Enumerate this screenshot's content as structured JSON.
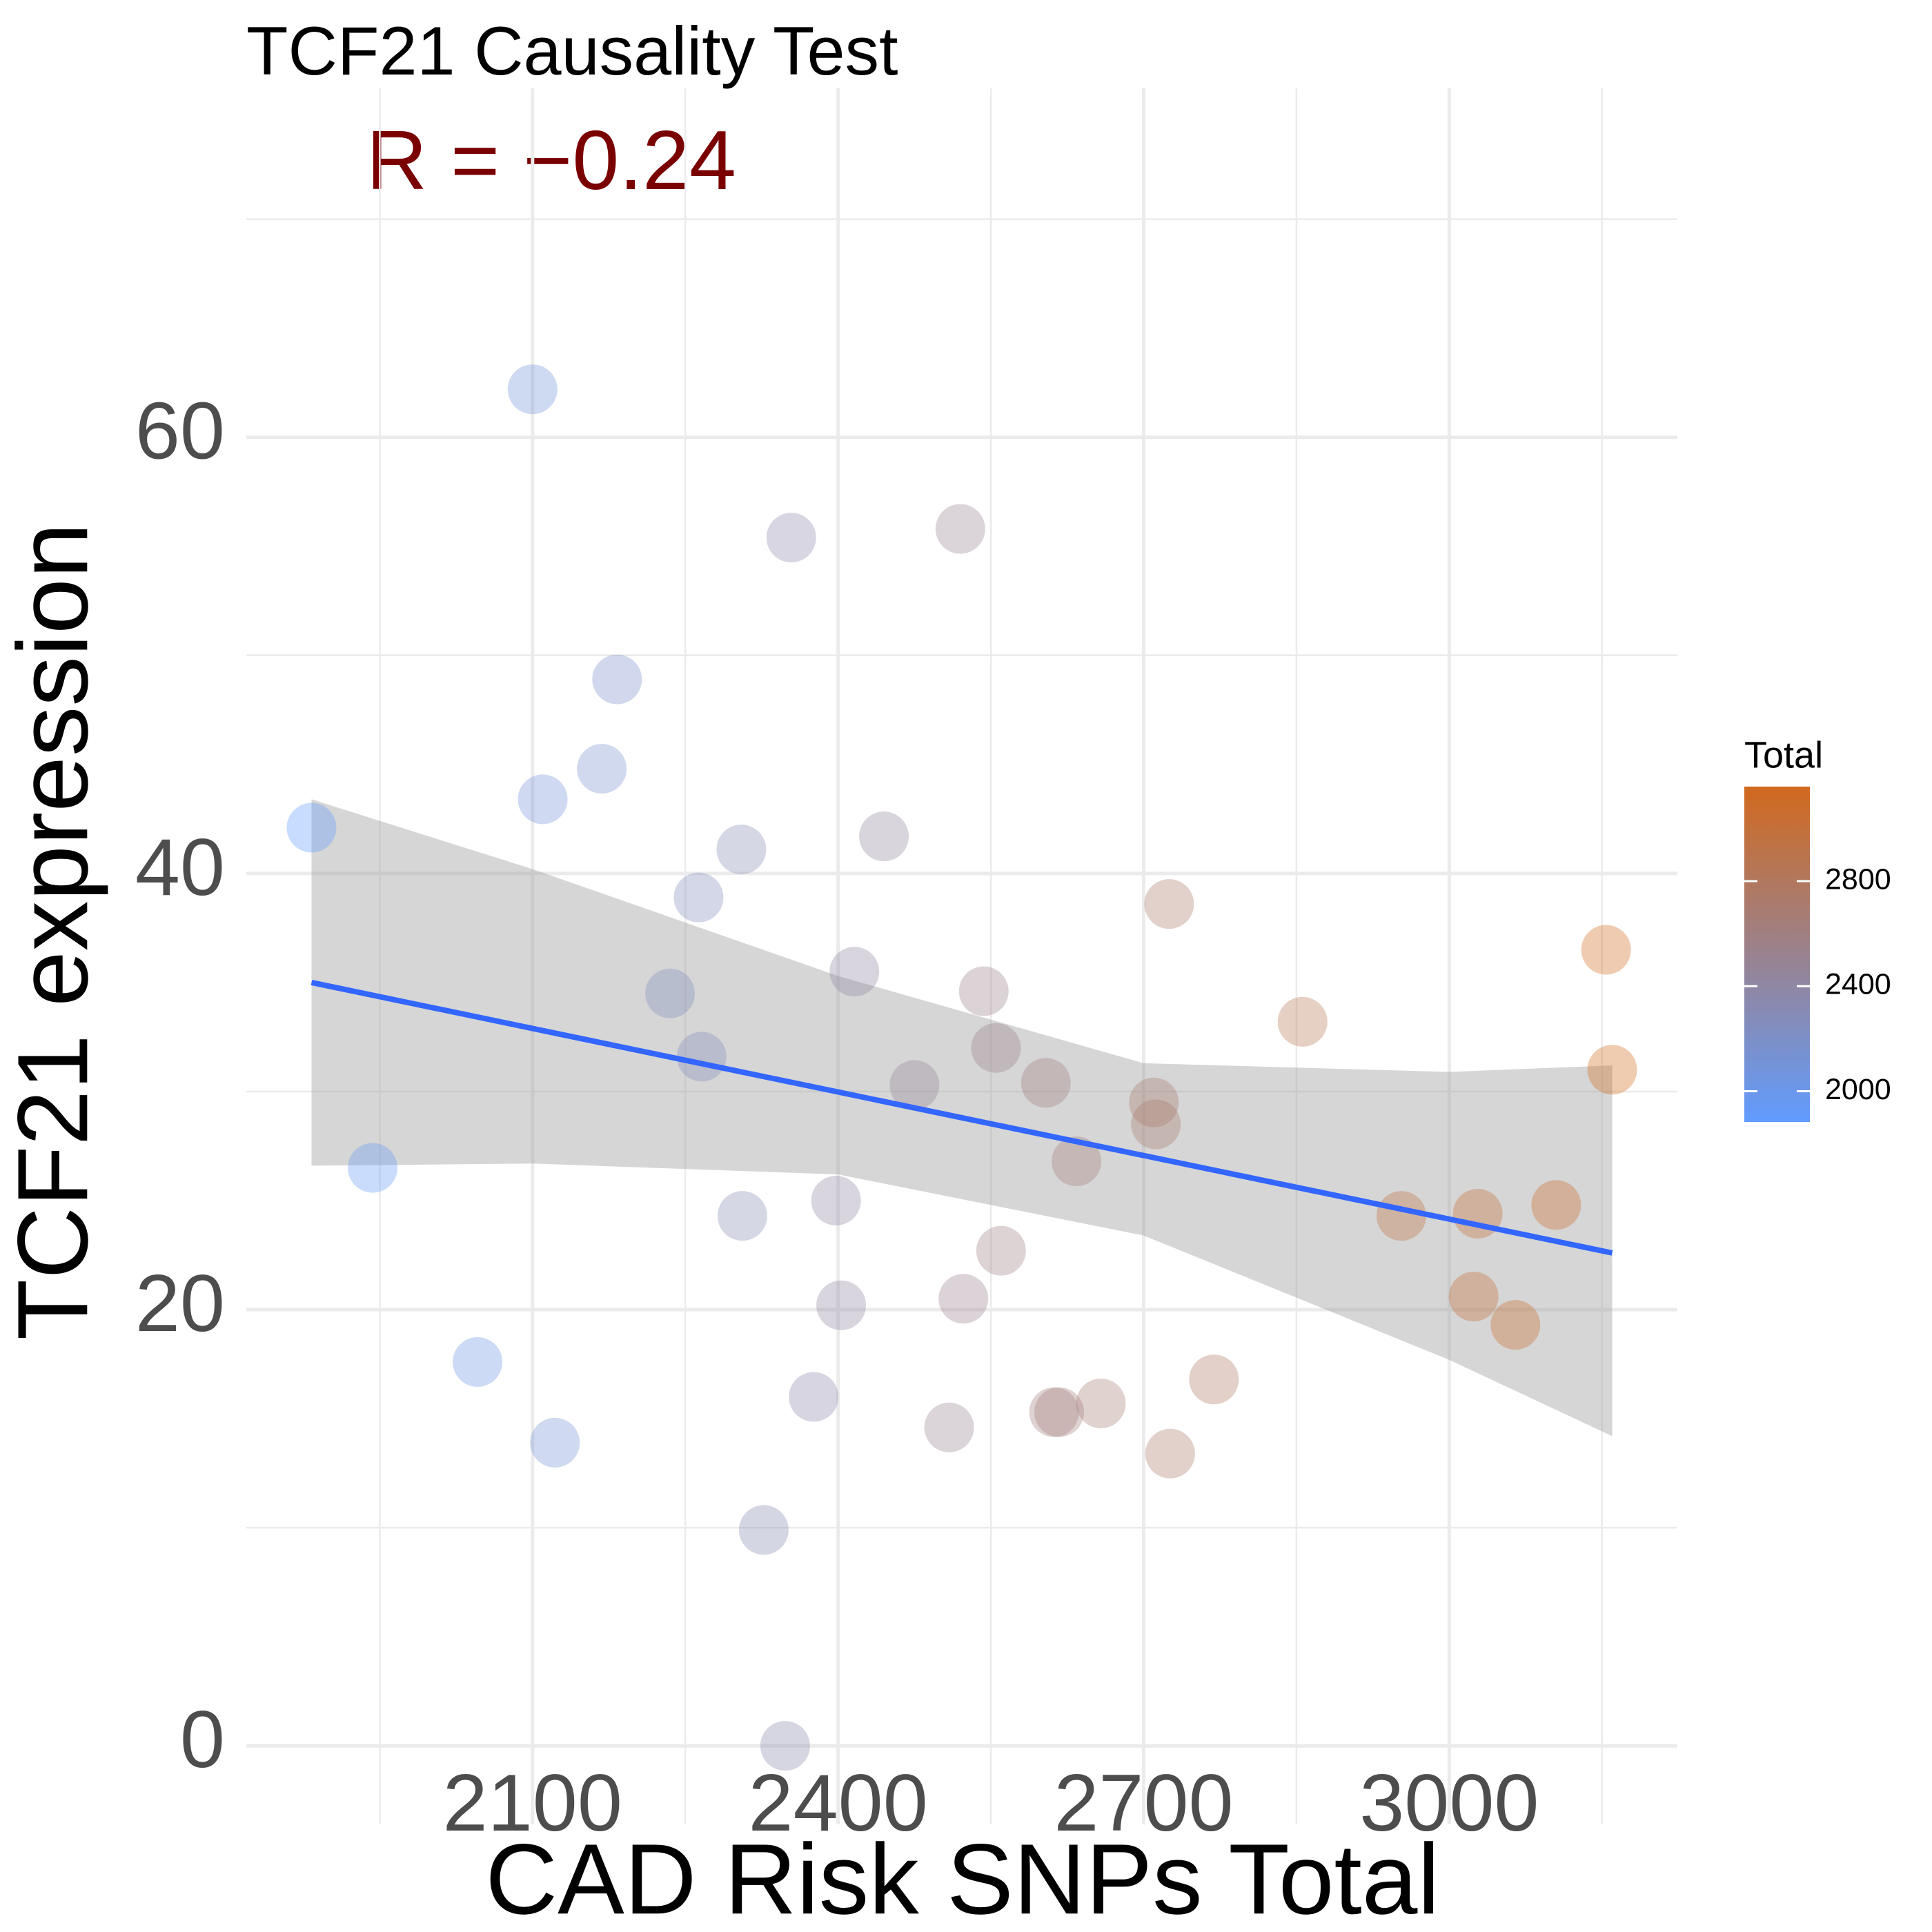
{
  "chart_data": {
    "type": "scatter",
    "title": "TCF21 Causality Test",
    "annotation": "R =  −0.24",
    "x_label": "CAD Risk SNPs Total",
    "y_label": "TCF21 expression",
    "xlim": [
      1819,
      3224
    ],
    "ylim": [
      -3.6,
      76
    ],
    "xticks": [
      2100,
      2400,
      2700,
      3000
    ],
    "yticks": [
      0,
      20,
      40,
      60
    ],
    "xminor": [
      1950,
      2250,
      2550,
      2850,
      3150
    ],
    "yminor": [
      10,
      30,
      50,
      70
    ],
    "grid": true,
    "x": [
      2100,
      2354,
      2520,
      2183,
      2168,
      2110,
      1883,
      2305,
      2445,
      2263,
      2725,
      3154,
      2416,
      2235,
      2543,
      2856,
      2266,
      2555,
      3160,
      2475,
      2604,
      2710,
      2712,
      1943,
      2634,
      2306,
      2398,
      2953,
      3028,
      3105,
      2560,
      2403,
      2523,
      3024,
      3065,
      2046,
      2769,
      2376,
      2658,
      2612,
      2617,
      2509,
      2122,
      2726,
      2327,
      2348
    ],
    "y": [
      62.2,
      55.4,
      55.8,
      48.9,
      44.8,
      43.4,
      42.1,
      41.1,
      41.7,
      38.9,
      38.6,
      36.5,
      35.5,
      34.5,
      34.6,
      33.2,
      31.6,
      32.0,
      31.0,
      30.3,
      30.4,
      29.5,
      28.5,
      26.5,
      26.8,
      24.3,
      25.0,
      24.3,
      24.4,
      24.8,
      22.7,
      20.2,
      20.5,
      20.6,
      19.3,
      17.6,
      16.8,
      16.0,
      15.7,
      15.3,
      15.3,
      14.6,
      13.9,
      13.4,
      9.9,
      0.0
    ],
    "point_alpha": 0.35,
    "fit": {
      "color": "#3366FF",
      "band_color": "#999999",
      "x": [
        1883,
        3160
      ],
      "y": [
        35.0,
        22.6
      ],
      "band_x": [
        1883,
        2100,
        2400,
        2700,
        3000,
        3160
      ],
      "band_upper": [
        43.4,
        40.2,
        35.3,
        31.3,
        30.9,
        31.2
      ],
      "band_lower": [
        26.6,
        26.7,
        26.2,
        23.4,
        17.7,
        14.2
      ]
    },
    "legend": {
      "title": "Total",
      "low_color": "#619CFF",
      "high_color": "#D2691E",
      "limits": [
        1883,
        3160
      ],
      "ticks": [
        2000,
        2400,
        2800
      ],
      "position": "right"
    }
  }
}
